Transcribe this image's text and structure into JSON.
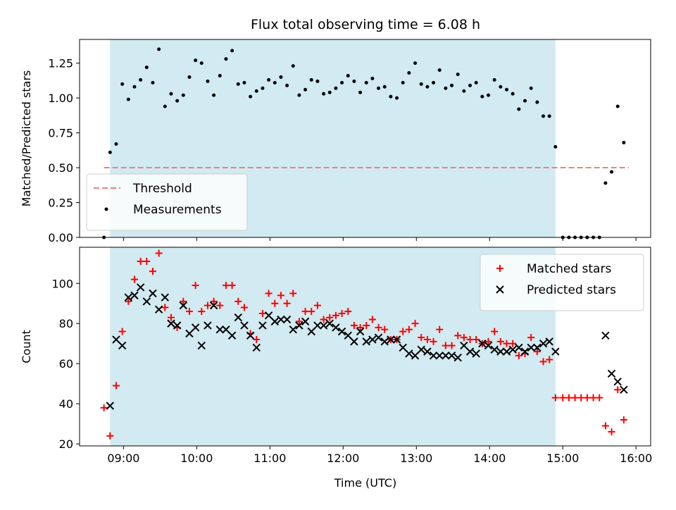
{
  "figure": {
    "title": "Flux total observing time = 6.08 h",
    "xlabel": "Time (UTC)",
    "x_ticks": [
      "09:00",
      "10:00",
      "11:00",
      "12:00",
      "13:00",
      "14:00",
      "15:00",
      "16:00"
    ],
    "shaded_region": {
      "start": "08:49",
      "end": "14:54",
      "color": "#add8e6"
    }
  },
  "chart_data": [
    {
      "type": "scatter",
      "ylabel": "Matched/Predicted stars",
      "xlim": [
        "08:24",
        "16:12"
      ],
      "ylim": [
        0,
        1.42
      ],
      "y_ticks": [
        "0.00",
        "0.25",
        "0.50",
        "0.75",
        "1.00",
        "1.25"
      ],
      "grid": false,
      "legend": "lower-left",
      "threshold": {
        "name": "Threshold",
        "value": 0.5,
        "x_start": "08:44",
        "x_end": "15:54",
        "color": "#f08080",
        "style": "dashed"
      },
      "series": [
        {
          "name": "Measurements",
          "color": "#000000",
          "marker": "dot",
          "points": [
            [
              "08:44",
              0.0
            ],
            [
              "08:49",
              0.61
            ],
            [
              "08:54",
              0.67
            ],
            [
              "08:59",
              1.1
            ],
            [
              "09:04",
              0.99
            ],
            [
              "09:09",
              1.08
            ],
            [
              "09:14",
              1.13
            ],
            [
              "09:19",
              1.22
            ],
            [
              "09:24",
              1.11
            ],
            [
              "09:29",
              1.35
            ],
            [
              "09:34",
              0.94
            ],
            [
              "09:39",
              1.03
            ],
            [
              "09:44",
              0.98
            ],
            [
              "09:49",
              1.02
            ],
            [
              "09:54",
              1.15
            ],
            [
              "09:59",
              1.27
            ],
            [
              "10:04",
              1.25
            ],
            [
              "10:09",
              1.12
            ],
            [
              "10:14",
              1.02
            ],
            [
              "10:19",
              1.16
            ],
            [
              "10:24",
              1.28
            ],
            [
              "10:29",
              1.34
            ],
            [
              "10:34",
              1.1
            ],
            [
              "10:39",
              1.11
            ],
            [
              "10:44",
              1.01
            ],
            [
              "10:49",
              1.05
            ],
            [
              "10:54",
              1.07
            ],
            [
              "10:59",
              1.13
            ],
            [
              "11:04",
              1.11
            ],
            [
              "11:09",
              1.15
            ],
            [
              "11:14",
              1.09
            ],
            [
              "11:19",
              1.23
            ],
            [
              "11:24",
              1.02
            ],
            [
              "11:29",
              1.06
            ],
            [
              "11:34",
              1.13
            ],
            [
              "11:39",
              1.12
            ],
            [
              "11:44",
              1.03
            ],
            [
              "11:49",
              1.04
            ],
            [
              "11:54",
              1.07
            ],
            [
              "11:59",
              1.11
            ],
            [
              "12:04",
              1.16
            ],
            [
              "12:09",
              1.12
            ],
            [
              "12:14",
              1.04
            ],
            [
              "12:19",
              1.11
            ],
            [
              "12:24",
              1.14
            ],
            [
              "12:29",
              1.07
            ],
            [
              "12:34",
              1.08
            ],
            [
              "12:39",
              1.01
            ],
            [
              "12:44",
              1.0
            ],
            [
              "12:49",
              1.11
            ],
            [
              "12:54",
              1.18
            ],
            [
              "12:59",
              1.25
            ],
            [
              "13:04",
              1.1
            ],
            [
              "13:09",
              1.08
            ],
            [
              "13:14",
              1.11
            ],
            [
              "13:19",
              1.2
            ],
            [
              "13:24",
              1.07
            ],
            [
              "13:29",
              1.09
            ],
            [
              "13:34",
              1.17
            ],
            [
              "13:39",
              1.05
            ],
            [
              "13:44",
              1.09
            ],
            [
              "13:49",
              1.11
            ],
            [
              "13:54",
              1.01
            ],
            [
              "13:59",
              1.02
            ],
            [
              "14:04",
              1.13
            ],
            [
              "14:09",
              1.08
            ],
            [
              "14:14",
              1.06
            ],
            [
              "14:19",
              1.03
            ],
            [
              "14:24",
              0.92
            ],
            [
              "14:29",
              0.98
            ],
            [
              "14:34",
              1.07
            ],
            [
              "14:39",
              0.97
            ],
            [
              "14:44",
              0.87
            ],
            [
              "14:49",
              0.87
            ],
            [
              "14:54",
              0.65
            ],
            [
              "15:00",
              0.0
            ],
            [
              "15:05",
              0.0
            ],
            [
              "15:10",
              0.0
            ],
            [
              "15:15",
              0.0
            ],
            [
              "15:20",
              0.0
            ],
            [
              "15:25",
              0.0
            ],
            [
              "15:30",
              0.0
            ],
            [
              "15:35",
              0.39
            ],
            [
              "15:40",
              0.47
            ],
            [
              "15:45",
              0.94
            ],
            [
              "15:50",
              0.68
            ]
          ]
        }
      ]
    },
    {
      "type": "scatter",
      "ylabel": "Count",
      "xlim": [
        "08:24",
        "16:12"
      ],
      "ylim": [
        19,
        118
      ],
      "y_ticks": [
        "20",
        "40",
        "60",
        "80",
        "100"
      ],
      "grid": false,
      "legend": "top-right",
      "series": [
        {
          "name": "Matched stars",
          "color": "#ff0000",
          "marker": "plus",
          "points": [
            [
              "08:44",
              38
            ],
            [
              "08:49",
              24
            ],
            [
              "08:54",
              49
            ],
            [
              "08:59",
              76
            ],
            [
              "09:04",
              91
            ],
            [
              "09:09",
              102
            ],
            [
              "09:14",
              111
            ],
            [
              "09:19",
              111
            ],
            [
              "09:24",
              106
            ],
            [
              "09:29",
              115
            ],
            [
              "09:34",
              88
            ],
            [
              "09:39",
              83
            ],
            [
              "09:44",
              78
            ],
            [
              "09:49",
              91
            ],
            [
              "09:54",
              86
            ],
            [
              "09:59",
              99
            ],
            [
              "10:04",
              86
            ],
            [
              "10:09",
              89
            ],
            [
              "10:14",
              91
            ],
            [
              "10:19",
              89
            ],
            [
              "10:24",
              99
            ],
            [
              "10:29",
              99
            ],
            [
              "10:34",
              91
            ],
            [
              "10:39",
              88
            ],
            [
              "10:44",
              75
            ],
            [
              "10:49",
              72
            ],
            [
              "10:54",
              85
            ],
            [
              "10:59",
              95
            ],
            [
              "11:04",
              90
            ],
            [
              "11:09",
              94
            ],
            [
              "11:14",
              90
            ],
            [
              "11:19",
              95
            ],
            [
              "11:24",
              81
            ],
            [
              "11:29",
              86
            ],
            [
              "11:34",
              86
            ],
            [
              "11:39",
              89
            ],
            [
              "11:44",
              82
            ],
            [
              "11:49",
              83
            ],
            [
              "11:54",
              84
            ],
            [
              "11:59",
              85
            ],
            [
              "12:04",
              86
            ],
            [
              "12:09",
              79
            ],
            [
              "12:14",
              78
            ],
            [
              "12:19",
              79
            ],
            [
              "12:24",
              82
            ],
            [
              "12:29",
              78
            ],
            [
              "12:34",
              77
            ],
            [
              "12:39",
              72
            ],
            [
              "12:44",
              72
            ],
            [
              "12:49",
              76
            ],
            [
              "12:54",
              77
            ],
            [
              "12:59",
              80
            ],
            [
              "13:04",
              73
            ],
            [
              "13:09",
              72
            ],
            [
              "13:14",
              71
            ],
            [
              "13:19",
              77
            ],
            [
              "13:24",
              69
            ],
            [
              "13:29",
              69
            ],
            [
              "13:34",
              74
            ],
            [
              "13:39",
              73
            ],
            [
              "13:44",
              72
            ],
            [
              "13:49",
              72
            ],
            [
              "13:54",
              70
            ],
            [
              "13:59",
              71
            ],
            [
              "14:04",
              76
            ],
            [
              "14:09",
              71
            ],
            [
              "14:14",
              70
            ],
            [
              "14:19",
              70
            ],
            [
              "14:24",
              64
            ],
            [
              "14:29",
              65
            ],
            [
              "14:34",
              73
            ],
            [
              "14:39",
              66
            ],
            [
              "14:44",
              61
            ],
            [
              "14:49",
              62
            ],
            [
              "14:54",
              43
            ],
            [
              "15:00",
              43
            ],
            [
              "15:05",
              43
            ],
            [
              "15:10",
              43
            ],
            [
              "15:15",
              43
            ],
            [
              "15:20",
              43
            ],
            [
              "15:25",
              43
            ],
            [
              "15:30",
              43
            ],
            [
              "15:35",
              29
            ],
            [
              "15:40",
              26
            ],
            [
              "15:45",
              47
            ],
            [
              "15:50",
              32
            ]
          ]
        },
        {
          "name": "Predicted stars",
          "color": "#000000",
          "marker": "x",
          "points": [
            [
              "08:49",
              39
            ],
            [
              "08:54",
              72
            ],
            [
              "08:59",
              69
            ],
            [
              "09:04",
              93
            ],
            [
              "09:09",
              94
            ],
            [
              "09:14",
              98
            ],
            [
              "09:19",
              91
            ],
            [
              "09:24",
              95
            ],
            [
              "09:29",
              87
            ],
            [
              "09:34",
              93
            ],
            [
              "09:39",
              80
            ],
            [
              "09:44",
              79
            ],
            [
              "09:49",
              89
            ],
            [
              "09:54",
              75
            ],
            [
              "09:59",
              78
            ],
            [
              "10:04",
              69
            ],
            [
              "10:09",
              79
            ],
            [
              "10:14",
              89
            ],
            [
              "10:19",
              77
            ],
            [
              "10:24",
              77
            ],
            [
              "10:29",
              74
            ],
            [
              "10:34",
              83
            ],
            [
              "10:39",
              79
            ],
            [
              "10:44",
              74
            ],
            [
              "10:49",
              68
            ],
            [
              "10:54",
              79
            ],
            [
              "10:59",
              84
            ],
            [
              "11:04",
              81
            ],
            [
              "11:09",
              82
            ],
            [
              "11:14",
              82
            ],
            [
              "11:19",
              77
            ],
            [
              "11:24",
              79
            ],
            [
              "11:29",
              81
            ],
            [
              "11:34",
              76
            ],
            [
              "11:39",
              79
            ],
            [
              "11:44",
              79
            ],
            [
              "11:49",
              80
            ],
            [
              "11:54",
              78
            ],
            [
              "11:59",
              76
            ],
            [
              "12:04",
              74
            ],
            [
              "12:09",
              71
            ],
            [
              "12:14",
              76
            ],
            [
              "12:19",
              71
            ],
            [
              "12:24",
              72
            ],
            [
              "12:29",
              73
            ],
            [
              "12:34",
              71
            ],
            [
              "12:39",
              72
            ],
            [
              "12:44",
              72
            ],
            [
              "12:49",
              68
            ],
            [
              "12:54",
              65
            ],
            [
              "12:59",
              64
            ],
            [
              "13:04",
              67
            ],
            [
              "13:09",
              66
            ],
            [
              "13:14",
              64
            ],
            [
              "13:19",
              64
            ],
            [
              "13:24",
              64
            ],
            [
              "13:29",
              64
            ],
            [
              "13:34",
              63
            ],
            [
              "13:39",
              69
            ],
            [
              "13:44",
              66
            ],
            [
              "13:49",
              65
            ],
            [
              "13:54",
              70
            ],
            [
              "13:59",
              69
            ],
            [
              "14:04",
              67
            ],
            [
              "14:09",
              66
            ],
            [
              "14:14",
              66
            ],
            [
              "14:19",
              67
            ],
            [
              "14:24",
              68
            ],
            [
              "14:29",
              66
            ],
            [
              "14:34",
              68
            ],
            [
              "14:39",
              68
            ],
            [
              "14:44",
              70
            ],
            [
              "14:49",
              71
            ],
            [
              "14:54",
              66
            ],
            [
              "15:35",
              74
            ],
            [
              "15:40",
              55
            ],
            [
              "15:45",
              51
            ],
            [
              "15:50",
              47
            ]
          ]
        }
      ]
    }
  ]
}
